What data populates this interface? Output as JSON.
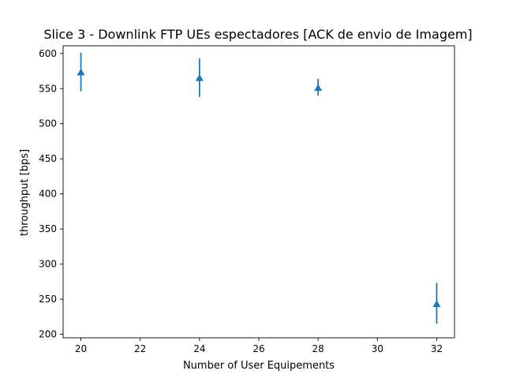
{
  "chart_data": {
    "type": "scatter",
    "title": "Slice 3 - Downlink FTP UEs espectadores [ACK de envio de Imagem]",
    "xlabel": "Number of User Equipements",
    "ylabel": "throughput [bps]",
    "xlim": [
      19.4,
      32.6
    ],
    "ylim": [
      195,
      611
    ],
    "xticks": [
      20,
      22,
      24,
      26,
      28,
      30,
      32
    ],
    "yticks": [
      200,
      250,
      300,
      350,
      400,
      450,
      500,
      550,
      600
    ],
    "grid": false,
    "marker": "triangle-up",
    "color": "#1f77b4",
    "series": [
      {
        "x": [
          20,
          24,
          28,
          32
        ],
        "y": [
          573,
          565,
          551,
          243
        ],
        "yerr_low": [
          546,
          538,
          540,
          215
        ],
        "yerr_high": [
          601,
          593,
          564,
          273
        ]
      }
    ]
  }
}
